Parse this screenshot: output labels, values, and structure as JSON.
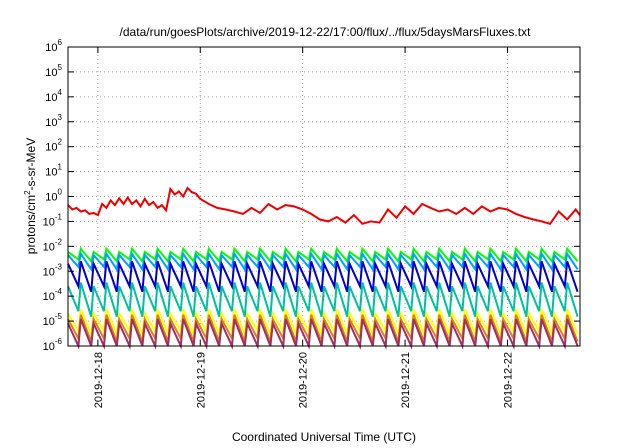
{
  "chart_data": {
    "type": "line",
    "title": "/data/run/goesPlots/archive/2019-12-22/17:00/flux/../flux/5daysMarsFluxes.txt",
    "xlabel": "Coordinated Universal Time (UTC)",
    "ylabel": {
      "parts": [
        "protons/cm",
        "2",
        "-s-sr-MeV"
      ]
    },
    "yscale": "log",
    "ylim": [
      1e-06,
      1000000.0
    ],
    "y_ticks": [
      {
        "base": "10",
        "exp": "-6",
        "value": 1e-06
      },
      {
        "base": "10",
        "exp": "-5",
        "value": 1e-05
      },
      {
        "base": "10",
        "exp": "-4",
        "value": 0.0001
      },
      {
        "base": "10",
        "exp": "-3",
        "value": 0.001
      },
      {
        "base": "10",
        "exp": "-2",
        "value": 0.01
      },
      {
        "base": "10",
        "exp": "-1",
        "value": 0.1
      },
      {
        "base": "10",
        "exp": "0",
        "value": 1
      },
      {
        "base": "10",
        "exp": "1",
        "value": 10.0
      },
      {
        "base": "10",
        "exp": "2",
        "value": 100.0
      },
      {
        "base": "10",
        "exp": "3",
        "value": 1000.0
      },
      {
        "base": "10",
        "exp": "4",
        "value": 10000.0
      },
      {
        "base": "10",
        "exp": "5",
        "value": 100000.0
      },
      {
        "base": "10",
        "exp": "6",
        "value": 1000000.0
      }
    ],
    "xlim": [
      "2019-12-17T17:00",
      "2019-12-22T17:00"
    ],
    "x_ticks": [
      "2019-12-18",
      "2019-12-19",
      "2019-12-20",
      "2019-12-21",
      "2019-12-22"
    ],
    "grid": true,
    "series": [
      {
        "color": "#ee0000",
        "x": [
          "2019-12-17T17:00",
          "2019-12-17T18:00",
          "2019-12-17T19:00",
          "2019-12-17T20:00",
          "2019-12-17T21:00",
          "2019-12-17T22:00",
          "2019-12-17T23:00",
          "2019-12-18T00:00",
          "2019-12-18T01:00",
          "2019-12-18T02:00",
          "2019-12-18T03:00",
          "2019-12-18T04:00",
          "2019-12-18T05:00",
          "2019-12-18T06:00",
          "2019-12-18T07:00",
          "2019-12-18T08:00",
          "2019-12-18T09:00",
          "2019-12-18T10:00",
          "2019-12-18T11:00",
          "2019-12-18T12:00",
          "2019-12-18T13:00",
          "2019-12-18T14:00",
          "2019-12-18T15:00",
          "2019-12-18T16:00",
          "2019-12-18T17:00",
          "2019-12-18T18:00",
          "2019-12-18T19:00",
          "2019-12-18T20:00",
          "2019-12-18T21:00",
          "2019-12-18T22:00",
          "2019-12-18T23:00",
          "2019-12-19T00:00",
          "2019-12-19T02:00",
          "2019-12-19T04:00",
          "2019-12-19T06:00",
          "2019-12-19T08:00",
          "2019-12-19T10:00",
          "2019-12-19T12:00",
          "2019-12-19T14:00",
          "2019-12-19T16:00",
          "2019-12-19T18:00",
          "2019-12-19T20:00",
          "2019-12-19T22:00",
          "2019-12-20T00:00",
          "2019-12-20T02:00",
          "2019-12-20T04:00",
          "2019-12-20T06:00",
          "2019-12-20T08:00",
          "2019-12-20T10:00",
          "2019-12-20T12:00",
          "2019-12-20T14:00",
          "2019-12-20T16:00",
          "2019-12-20T18:00",
          "2019-12-20T20:00",
          "2019-12-20T22:00",
          "2019-12-21T00:00",
          "2019-12-21T02:00",
          "2019-12-21T04:00",
          "2019-12-21T06:00",
          "2019-12-21T08:00",
          "2019-12-21T10:00",
          "2019-12-21T12:00",
          "2019-12-21T14:00",
          "2019-12-21T16:00",
          "2019-12-21T18:00",
          "2019-12-21T20:00",
          "2019-12-21T22:00",
          "2019-12-22T00:00",
          "2019-12-22T02:00",
          "2019-12-22T04:00",
          "2019-12-22T06:00",
          "2019-12-22T08:00",
          "2019-12-22T10:00",
          "2019-12-22T12:00",
          "2019-12-22T14:00",
          "2019-12-22T16:00",
          "2019-12-22T17:00"
        ],
        "y": [
          0.45,
          0.3,
          0.35,
          0.25,
          0.28,
          0.2,
          0.22,
          0.18,
          0.5,
          0.35,
          0.7,
          0.45,
          0.85,
          0.5,
          0.9,
          0.5,
          0.7,
          0.4,
          0.8,
          0.45,
          0.6,
          0.35,
          0.45,
          0.28,
          2.0,
          1.2,
          1.6,
          1.0,
          2.2,
          1.5,
          1.3,
          0.8,
          0.5,
          0.35,
          0.3,
          0.25,
          0.2,
          0.35,
          0.22,
          0.5,
          0.3,
          0.45,
          0.4,
          0.3,
          0.2,
          0.12,
          0.1,
          0.15,
          0.09,
          0.18,
          0.08,
          0.1,
          0.09,
          0.3,
          0.14,
          0.4,
          0.2,
          0.5,
          0.35,
          0.25,
          0.3,
          0.2,
          0.35,
          0.2,
          0.4,
          0.25,
          0.35,
          0.3,
          0.2,
          0.15,
          0.12,
          0.1,
          0.08,
          0.25,
          0.12,
          0.3,
          0.18
        ]
      },
      {
        "color": "#00ff00",
        "cycles": 40,
        "peak": [
          0.006,
          0.008
        ],
        "trough": [
          0.0025,
          0.003
        ]
      },
      {
        "color": "#00a0ff",
        "cycles": 40,
        "peak": [
          0.0045,
          0.005
        ],
        "trough": [
          0.0012,
          0.0015
        ]
      },
      {
        "color": "#0000cc",
        "cycles": 40,
        "peak": [
          0.002,
          0.0025
        ],
        "trough": [
          0.00015,
          0.00025
        ]
      },
      {
        "color": "#00c0a0",
        "cycles": 40,
        "peak": [
          0.00025,
          0.00035
        ],
        "trough": [
          1.5e-05,
          2.5e-05
        ]
      },
      {
        "color": "#ffff00",
        "cycles": 40,
        "peak": [
          2e-05,
          3e-05
        ],
        "trough": [
          3e-06,
          4e-06
        ]
      },
      {
        "color": "#e08020",
        "cycles": 40,
        "peak": [
          1.2e-05,
          1.8e-05
        ],
        "trough": [
          1.5e-06,
          2e-06
        ]
      },
      {
        "color": "#a03060",
        "cycles": 40,
        "peak": [
          8e-06,
          1.2e-05
        ],
        "trough": [
          1e-06,
          1e-06
        ]
      }
    ]
  }
}
